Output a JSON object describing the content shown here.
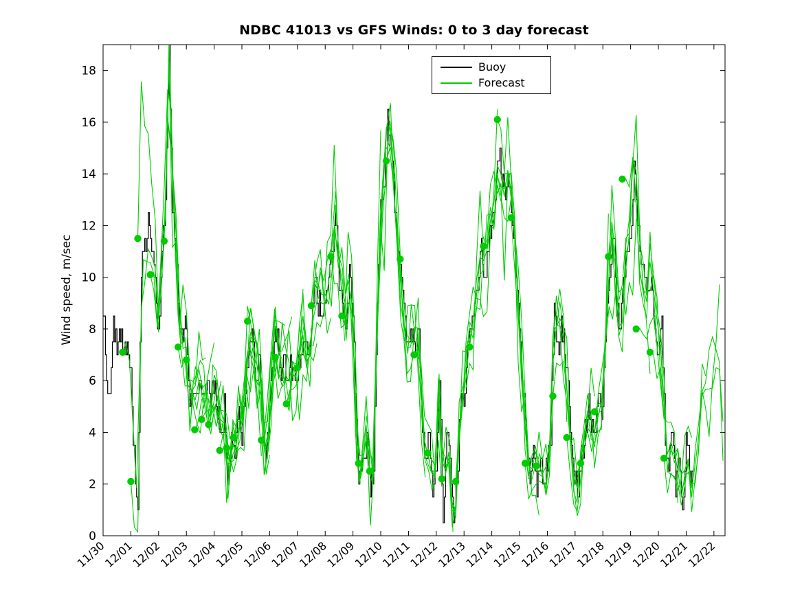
{
  "title": "NDBC 41013 vs GFS Winds: 0 to 3 day forecast",
  "ylabel": "Wind speed, m/sec",
  "legend": {
    "items": [
      {
        "label": "Buoy",
        "color": "#000000"
      },
      {
        "label": "Forecast",
        "color": "#00cc00"
      }
    ]
  },
  "chart_data": {
    "type": "line",
    "title": "NDBC 41013 vs GFS Winds: 0 to 3 day forecast",
    "xlabel": "",
    "ylabel": "Wind speed, m/sec",
    "xlim_days": [
      0,
      22.4
    ],
    "ylim": [
      0,
      19
    ],
    "grid": false,
    "legend_position": "upper-middle",
    "x_tick_labels": [
      "11/30",
      "12/01",
      "12/02",
      "12/03",
      "12/04",
      "12/05",
      "12/06",
      "12/07",
      "12/08",
      "12/09",
      "12/10",
      "12/11",
      "12/12",
      "12/13",
      "12/14",
      "12/15",
      "12/16",
      "12/17",
      "12/18",
      "12/19",
      "12/20",
      "12/21",
      "12/22"
    ],
    "y_ticks": [
      0,
      2,
      4,
      6,
      8,
      10,
      12,
      14,
      16,
      18
    ],
    "series": [
      {
        "name": "Buoy",
        "color": "#000000",
        "style": "stairs",
        "t0_days": 0,
        "dt_days": 0.125,
        "end_index": 170,
        "values": [
          9,
          6,
          6,
          8,
          7,
          8,
          7,
          8,
          6,
          3,
          1,
          10.5,
          11,
          12,
          11,
          10,
          7.5,
          11,
          13,
          19,
          13,
          11.5,
          8,
          8,
          8,
          5,
          6,
          5,
          6,
          5.5,
          6,
          5,
          6,
          5,
          4,
          5,
          2,
          4,
          3,
          5,
          4,
          6,
          7,
          8,
          6,
          7,
          4,
          3,
          5,
          7,
          8,
          6,
          7,
          6,
          6.5,
          6,
          6,
          7,
          8,
          7,
          8,
          10,
          9,
          9,
          9,
          10,
          11,
          12.5,
          10,
          9,
          8.5,
          10,
          9,
          4,
          2,
          3,
          4,
          2,
          2.5,
          9,
          13,
          14,
          16,
          15,
          13,
          11,
          10,
          8,
          7.5,
          8,
          7,
          8,
          4,
          3,
          4,
          2,
          3,
          6,
          0.5,
          4,
          3,
          0.5,
          2,
          5,
          5,
          7,
          8,
          9,
          10,
          11,
          10,
          11,
          12,
          13,
          15,
          14,
          13,
          14,
          12,
          10,
          8,
          6,
          4,
          2,
          3,
          2,
          3,
          2,
          3,
          4,
          9,
          7,
          8,
          7,
          6,
          3,
          2,
          1.5,
          3,
          4,
          5,
          4,
          4.5,
          5,
          5,
          8,
          10,
          12,
          9,
          8,
          10,
          11,
          11,
          14.5,
          12,
          11,
          10,
          9,
          10,
          8,
          7,
          8,
          4,
          3,
          4,
          2,
          3,
          0.5,
          4,
          3,
          2,
          3,
          4,
          5,
          5.5,
          6,
          7,
          8.5,
          6,
          3.5
        ]
      },
      {
        "name": "Forecast",
        "color": "#00cc00",
        "style": "fan-of-runs",
        "run_length_days": 3,
        "marker": "filled-circle-at-init",
        "init_points": [
          [
            0.7,
            7.1
          ],
          [
            1.0,
            2.1
          ],
          [
            1.25,
            11.5
          ],
          [
            1.7,
            10.1
          ],
          [
            2.2,
            11.4
          ],
          [
            2.7,
            7.3
          ],
          [
            3.0,
            6.8
          ],
          [
            3.3,
            4.1
          ],
          [
            3.55,
            4.5
          ],
          [
            3.8,
            4.3
          ],
          [
            4.2,
            3.3
          ],
          [
            4.45,
            3.4
          ],
          [
            4.7,
            3.8
          ],
          [
            5.2,
            8.3
          ],
          [
            5.7,
            3.7
          ],
          [
            6.2,
            6.9
          ],
          [
            6.6,
            5.1
          ],
          [
            7.0,
            6.5
          ],
          [
            7.5,
            8.9
          ],
          [
            8.2,
            10.8
          ],
          [
            8.6,
            8.5
          ],
          [
            9.2,
            2.8
          ],
          [
            9.6,
            2.5
          ],
          [
            10.2,
            14.5
          ],
          [
            10.7,
            10.7
          ],
          [
            11.2,
            7.0
          ],
          [
            11.7,
            3.2
          ],
          [
            12.2,
            2.2
          ],
          [
            12.7,
            2.1
          ],
          [
            13.2,
            7.3
          ],
          [
            13.7,
            11.2
          ],
          [
            14.2,
            16.1
          ],
          [
            14.7,
            12.3
          ],
          [
            15.2,
            2.8
          ],
          [
            15.6,
            2.7
          ],
          [
            16.2,
            5.4
          ],
          [
            16.7,
            3.8
          ],
          [
            17.2,
            2.8
          ],
          [
            17.7,
            4.8
          ],
          [
            18.2,
            10.8
          ],
          [
            18.7,
            13.8
          ],
          [
            19.2,
            8.0
          ],
          [
            19.7,
            7.1
          ],
          [
            20.2,
            3.0
          ]
        ]
      }
    ],
    "notes": "Black stairs = buoy observations. Each green line is one GFS forecast run starting at a green dot (init point) and extending 3 days."
  }
}
